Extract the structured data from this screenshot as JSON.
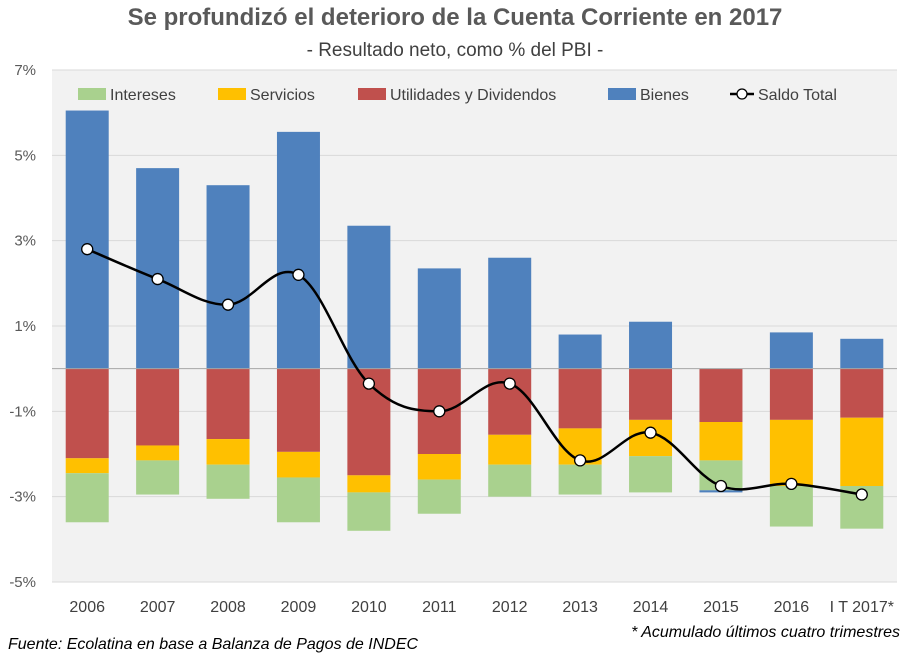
{
  "chart_data": {
    "type": "bar",
    "stacked": true,
    "title": "Se profundizó el deterioro de la Cuenta Corriente en 2017",
    "subtitle": "- Resultado neto, como % del PBI -",
    "categories": [
      "2006",
      "2007",
      "2008",
      "2009",
      "2010",
      "2011",
      "2012",
      "2013",
      "2014",
      "2015",
      "2016",
      "I T 2017*"
    ],
    "ylim": [
      -5,
      7
    ],
    "yticks": [
      7,
      5,
      3,
      1,
      -1,
      -3,
      -5
    ],
    "ytick_labels": [
      "7%",
      "5%",
      "3%",
      "1%",
      "-1%",
      "-3%",
      "-5%"
    ],
    "grid": true,
    "legend_position": "top",
    "series": [
      {
        "name": "Intereses",
        "color": "#A9D18E",
        "values": [
          -1.15,
          -0.8,
          -0.8,
          -1.05,
          -0.9,
          -0.8,
          -0.75,
          -0.7,
          -0.85,
          -0.7,
          -0.95,
          -1.0
        ]
      },
      {
        "name": "Servicios",
        "color": "#FFC000",
        "values": [
          -0.35,
          -0.35,
          -0.6,
          -0.6,
          -0.4,
          -0.6,
          -0.7,
          -0.85,
          -0.85,
          -0.9,
          -1.55,
          -1.6
        ]
      },
      {
        "name": "Utilidades y Dividendos",
        "color": "#C0504D",
        "values": [
          -2.1,
          -1.8,
          -1.65,
          -1.95,
          -2.5,
          -2.0,
          -1.55,
          -1.4,
          -1.2,
          -1.25,
          -1.2,
          -1.15
        ]
      },
      {
        "name": "Bienes",
        "color": "#4F81BD",
        "values": [
          6.05,
          4.7,
          4.3,
          5.55,
          3.35,
          2.35,
          2.6,
          0.8,
          1.1,
          -0.05,
          0.85,
          0.7
        ]
      },
      {
        "name": "Saldo Total",
        "type": "line",
        "color": "#000000",
        "values": [
          2.8,
          2.1,
          1.5,
          2.2,
          -0.35,
          -1.0,
          -0.35,
          -2.15,
          -1.5,
          -2.75,
          -2.7,
          -2.95
        ]
      }
    ],
    "footnote": "* Acumulado últimos cuatro trimestres",
    "source": "Fuente: Ecolatina en base a Balanza de Pagos de INDEC"
  }
}
